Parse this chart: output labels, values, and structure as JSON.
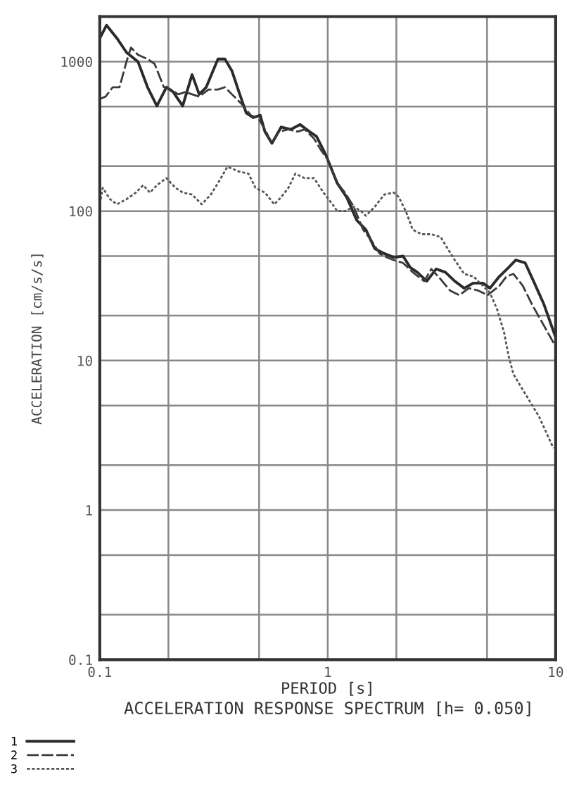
{
  "chart_data": {
    "type": "line",
    "title": "ACCELERATION RESPONSE SPECTRUM [h= 0.050]",
    "xlabel": "PERIOD [s]",
    "ylabel": "ACCELERATION [cm/s/s]",
    "log": "xy",
    "grid": true,
    "legend": "bottom left",
    "marker": "none",
    "xlim": [
      0.1,
      10
    ],
    "ylim": [
      0.1,
      2000
    ],
    "xticks": [
      0.1,
      {
        "value": 0.2,
        "label": null
      },
      {
        "value": 0.5,
        "label": null
      },
      1,
      {
        "value": 2,
        "label": null
      },
      {
        "value": 5,
        "label": null
      },
      10
    ],
    "yticks": [
      0.1,
      {
        "value": 0.2,
        "label": null
      },
      {
        "value": 0.5,
        "label": null
      },
      1,
      {
        "value": 2,
        "label": null
      },
      {
        "value": 5,
        "label": null
      },
      10,
      {
        "value": 20,
        "label": null
      },
      {
        "value": 50,
        "label": null
      },
      100,
      {
        "value": 200,
        "label": null
      },
      {
        "value": 500,
        "label": null
      },
      1000
    ],
    "series": [
      {
        "name": "1",
        "color": "#2b2b2b",
        "line_style": "solid",
        "x": [
          0.1,
          0.107,
          0.119,
          0.131,
          0.147,
          0.162,
          0.178,
          0.196,
          0.21,
          0.231,
          0.254,
          0.273,
          0.293,
          0.33,
          0.354,
          0.38,
          0.408,
          0.439,
          0.471,
          0.506,
          0.53,
          0.569,
          0.625,
          0.688,
          0.757,
          0.832,
          0.893,
          0.982,
          1.1,
          1.21,
          1.34,
          1.47,
          1.61,
          1.77,
          1.95,
          2.14,
          2.3,
          2.47,
          2.72,
          2.99,
          3.28,
          3.61,
          3.97,
          4.36,
          4.8,
          5.15,
          5.66,
          6.22,
          6.68,
          7.35,
          8.07,
          8.89,
          10
        ],
        "values": [
          1430,
          1750,
          1430,
          1150,
          1000,
          674,
          505,
          674,
          626,
          505,
          818,
          604,
          674,
          1040,
          1040,
          866,
          626,
          453,
          422,
          437,
          340,
          284,
          365,
          352,
          379,
          340,
          316,
          237,
          154,
          124,
          87,
          75,
          56,
          52,
          49,
          50,
          42,
          39,
          34,
          41,
          39,
          34,
          30.5,
          33,
          33,
          30.5,
          36.5,
          42,
          47,
          45,
          33,
          23.7,
          14.3
        ]
      },
      {
        "name": "2",
        "color": "#3a3a3a",
        "line_style": "dashed",
        "x": [
          0.1,
          0.106,
          0.114,
          0.122,
          0.131,
          0.137,
          0.147,
          0.162,
          0.174,
          0.191,
          0.205,
          0.221,
          0.237,
          0.254,
          0.273,
          0.3,
          0.33,
          0.354,
          0.38,
          0.418,
          0.46,
          0.494,
          0.53,
          0.569,
          0.611,
          0.672,
          0.738,
          0.793,
          0.871,
          0.935,
          1.0,
          1.1,
          1.19,
          1.3,
          1.43,
          1.54,
          1.69,
          1.82,
          1.95,
          2.14,
          2.36,
          2.65,
          2.85,
          3.13,
          3.44,
          3.78,
          4.16,
          4.57,
          5.03,
          5.66,
          6.08,
          6.53,
          7.18,
          7.88,
          8.89,
          10
        ],
        "values": [
          562,
          583,
          674,
          674,
          1000,
          1240,
          1110,
          1040,
          965,
          674,
          650,
          604,
          626,
          604,
          583,
          650,
          650,
          674,
          604,
          523,
          437,
          422,
          352,
          284,
          340,
          352,
          340,
          352,
          305,
          255,
          221,
          154,
          133,
          107,
          75,
          65,
          52,
          49,
          47,
          45,
          39,
          34,
          41,
          35,
          29.4,
          27.4,
          30.5,
          29.4,
          27.4,
          31.6,
          36.5,
          38,
          31.6,
          23.7,
          17.1,
          12.4
        ]
      },
      {
        "name": "3",
        "color": "#555555",
        "line_style": "dotted",
        "x": [
          0.1,
          0.103,
          0.111,
          0.119,
          0.131,
          0.144,
          0.155,
          0.166,
          0.178,
          0.196,
          0.215,
          0.231,
          0.254,
          0.28,
          0.307,
          0.33,
          0.363,
          0.408,
          0.449,
          0.482,
          0.53,
          0.583,
          0.625,
          0.672,
          0.721,
          0.793,
          0.871,
          0.958,
          1.05,
          1.1,
          1.19,
          1.3,
          1.4,
          1.47,
          1.61,
          1.77,
          1.95,
          2.05,
          2.2,
          2.36,
          2.59,
          2.85,
          3.13,
          3.36,
          3.61,
          3.97,
          4.36,
          4.8,
          5.15,
          5.53,
          5.94,
          6.22,
          6.53,
          7.35,
          8.47,
          9.77
        ],
        "values": [
          111,
          143,
          120,
          111,
          120,
          133,
          149,
          133,
          149,
          166,
          143,
          133,
          129,
          111,
          129,
          154,
          198,
          184,
          178,
          143,
          133,
          111,
          124,
          143,
          178,
          166,
          166,
          133,
          111,
          100,
          100,
          107,
          100,
          93,
          107,
          129,
          133,
          124,
          100,
          75,
          70,
          70,
          67,
          56,
          47,
          38,
          36.5,
          31.6,
          28.4,
          22.1,
          15.4,
          10.7,
          8.1,
          6.0,
          4.2,
          2.6
        ]
      }
    ]
  }
}
